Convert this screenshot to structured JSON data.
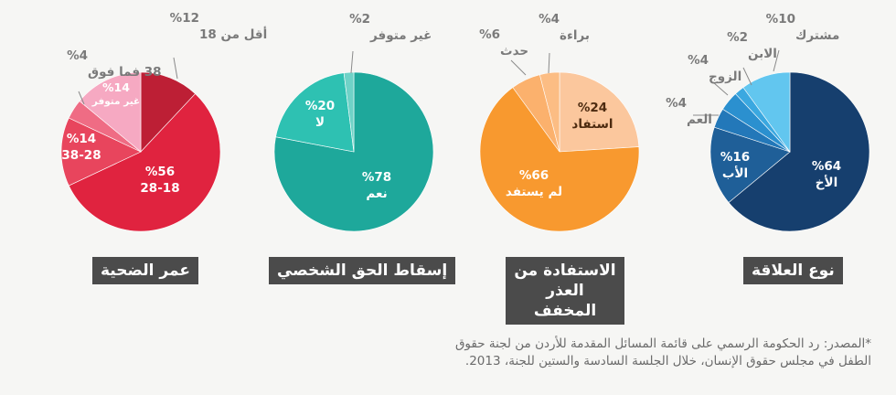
{
  "chart_data": [
    {
      "type": "pie",
      "title": "عمر الضحية",
      "slices": [
        {
          "label": "أقل من 18",
          "value": 12,
          "value_text": "%12",
          "color": "#bd1f35"
        },
        {
          "label": "28-18",
          "value": 56,
          "value_text": "%56",
          "color": "#e0233f"
        },
        {
          "label": "38-28",
          "value": 14,
          "value_text": "%14",
          "color": "#e8455d"
        },
        {
          "label": "38 فما فوق",
          "value": 4,
          "value_text": "%4",
          "color": "#ef6c84"
        },
        {
          "label": "غير متوفر",
          "value": 14,
          "value_text": "%14",
          "color": "#f6a9c2"
        }
      ]
    },
    {
      "type": "pie",
      "title": "إسقاط الحق الشخصي",
      "slices": [
        {
          "label": "نعم",
          "value": 78,
          "value_text": "%78",
          "color": "#1ea89b"
        },
        {
          "label": "لا",
          "value": 20,
          "value_text": "%20",
          "color": "#2ec1b2"
        },
        {
          "label": "غير متوفر",
          "value": 2,
          "value_text": "%2",
          "color": "#6fd2c7"
        }
      ]
    },
    {
      "type": "pie",
      "title": "الاستفادة من العذر المخفف",
      "slices": [
        {
          "label": "استفاد",
          "value": 24,
          "value_text": "%24",
          "color": "#fbc79d"
        },
        {
          "label": "لم يستفد",
          "value": 66,
          "value_text": "%66",
          "color": "#f8992f"
        },
        {
          "label": "حدث",
          "value": 6,
          "value_text": "%6",
          "color": "#fbb16d"
        },
        {
          "label": "براءة",
          "value": 4,
          "value_text": "%4",
          "color": "#fcbd84"
        }
      ]
    },
    {
      "type": "pie",
      "title": "نوع العلاقة",
      "slices": [
        {
          "label": "الأخ",
          "value": 64,
          "value_text": "%64",
          "color": "#163f6e"
        },
        {
          "label": "الأب",
          "value": 16,
          "value_text": "%16",
          "color": "#1f5f98"
        },
        {
          "label": "العم",
          "value": 4,
          "value_text": "%4",
          "color": "#2378b9"
        },
        {
          "label": "الزوج",
          "value": 4,
          "value_text": "%4",
          "color": "#2b90cf"
        },
        {
          "label": "الابن",
          "value": 2,
          "value_text": "%2",
          "color": "#3ba8e0"
        },
        {
          "label": "مشترك",
          "value": 10,
          "value_text": "%10",
          "color": "#62c6ef"
        }
      ]
    }
  ],
  "source_line_1": "*المصدر: رد الحكومة الرسمي على قائمة المسائل المقدمة للأردن من لجنة حقوق",
  "source_line_2": "الطفل في مجلس حقوق الإنسان، خلال الجلسة السادسة والستين للجنة، 2013."
}
